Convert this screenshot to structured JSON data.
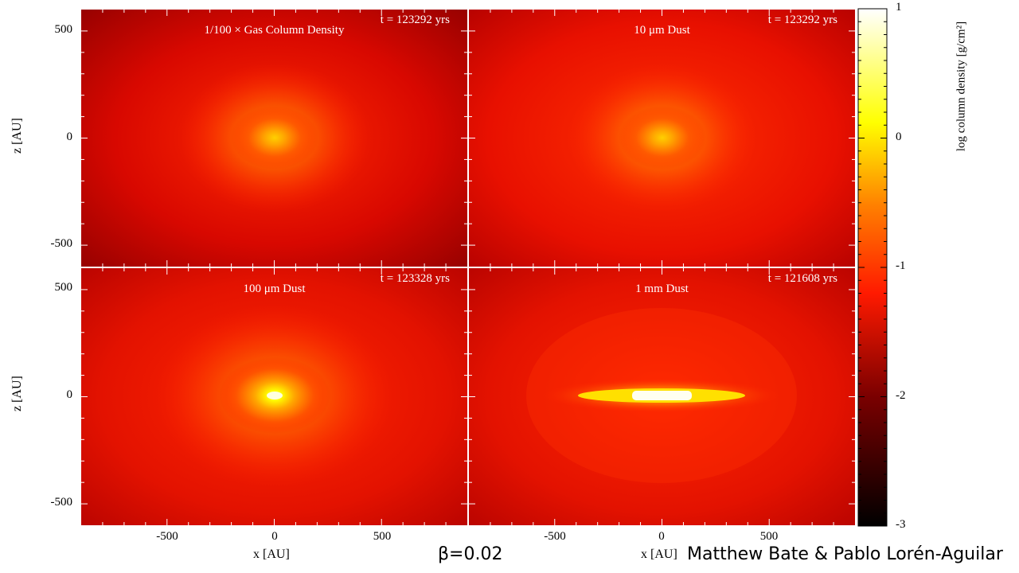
{
  "chart_data": [
    {
      "type": "heatmap",
      "title": "1/100 × Gas Column Density",
      "time": "t = 123292 yrs",
      "xlabel": "",
      "ylabel": "z [AU]",
      "yticks": [
        "500",
        "0",
        "-500"
      ],
      "xticks": [],
      "xlim": [
        -900,
        900
      ],
      "ylim": [
        -600,
        600
      ],
      "structure": "round core",
      "peak_log_density": -0.5
    },
    {
      "type": "heatmap",
      "title": "10 μm Dust",
      "time": "t = 123292 yrs",
      "xlabel": "",
      "ylabel": "",
      "yticks": [],
      "xticks": [],
      "xlim": [
        -900,
        900
      ],
      "ylim": [
        -600,
        600
      ],
      "structure": "round core",
      "peak_log_density": -0.5
    },
    {
      "type": "heatmap",
      "title": "100 μm Dust",
      "time": "t = 123328 yrs",
      "xlabel": "x [AU]",
      "ylabel": "z [AU]",
      "yticks": [
        "500",
        "0",
        "-500"
      ],
      "xticks": [
        "-500",
        "0",
        "500"
      ],
      "xlim": [
        -900,
        900
      ],
      "ylim": [
        -600,
        600
      ],
      "structure": "round core",
      "peak_log_density": 0.5
    },
    {
      "type": "heatmap",
      "title": "1 mm Dust",
      "time": "t = 121608 yrs",
      "xlabel": "x [AU]",
      "ylabel": "",
      "yticks": [],
      "xticks": [
        "-500",
        "0",
        "500"
      ],
      "xlim": [
        -900,
        900
      ],
      "ylim": [
        -600,
        600
      ],
      "structure": "thin disc",
      "peak_log_density": 1
    }
  ],
  "colorbar": {
    "label": "log column density [g/cm²]",
    "ticks": [
      "1",
      "0",
      "-1",
      "-2",
      "-3"
    ],
    "range": [
      -3,
      1
    ],
    "colormap": [
      "#000000",
      "#7a0000",
      "#ff1a00",
      "#ff8000",
      "#ffff00",
      "#ffffff"
    ]
  },
  "footer": {
    "beta": "β=0.02",
    "credit": "Matthew Bate & Pablo Lorén-Aguilar"
  }
}
